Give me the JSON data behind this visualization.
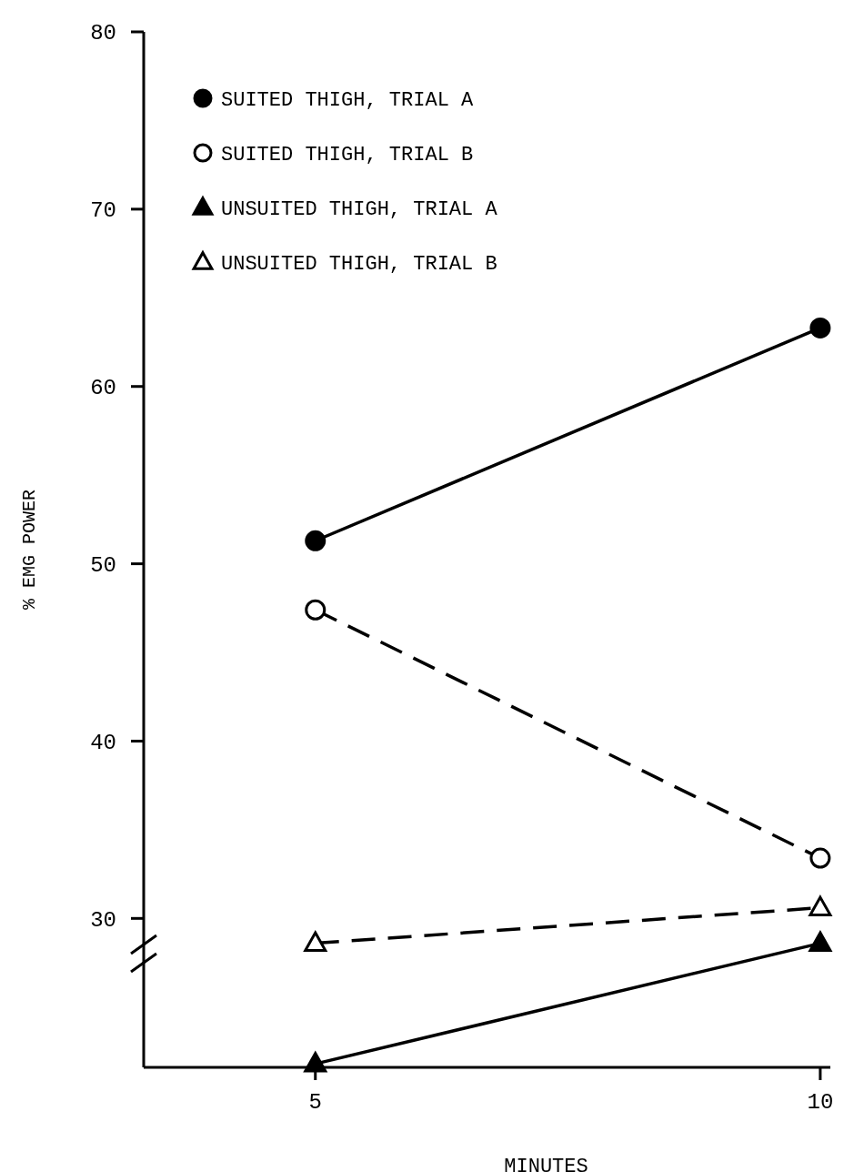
{
  "chart_data": {
    "type": "line",
    "xlabel": "MINUTES",
    "ylabel": "% EMG POWER",
    "x": [
      5,
      10
    ],
    "xlim": [
      3.3,
      10.1
    ],
    "xticks": [
      5,
      10
    ],
    "ylim": [
      21.6,
      80
    ],
    "yticks": [
      30,
      40,
      50,
      60,
      70,
      80
    ],
    "grid": false,
    "legend": "top left",
    "series": [
      {
        "name": "SUITED THIGH, TRIAL A",
        "color": "#000000",
        "values": [
          51.3,
          63.3
        ],
        "marker": "circle",
        "line_style": "solid"
      },
      {
        "name": "SUITED THIGH, TRIAL B",
        "color": "#000000",
        "values": [
          47.4,
          33.4
        ],
        "marker": "circle",
        "line_style": "dashed"
      },
      {
        "name": "UNSUITED THIGH, TRIAL A",
        "color": "#000000",
        "values": [
          21.8,
          28.6
        ],
        "marker": "triangle",
        "line_style": "solid"
      },
      {
        "name": "UNSUITED THIGH, TRIAL B",
        "color": "#000000",
        "values": [
          28.6,
          30.6
        ],
        "marker": "triangle",
        "line_style": "dashed"
      }
    ]
  }
}
